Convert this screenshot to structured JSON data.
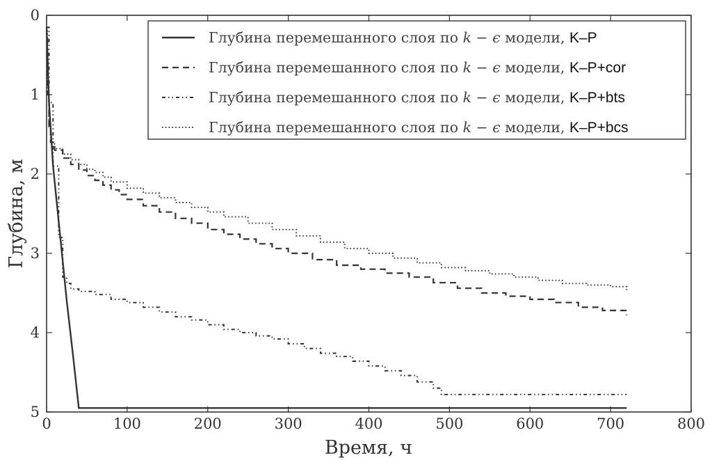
{
  "chart_data": {
    "type": "line",
    "title": "",
    "xlabel": "Время, ч",
    "ylabel": "Глубина, м",
    "xlim": [
      0,
      800
    ],
    "ylim": [
      0,
      5
    ],
    "y_inverted": true,
    "grid": false,
    "legend_position": "top-right",
    "x_ticks": [
      "0",
      "100",
      "200",
      "300",
      "400",
      "500",
      "600",
      "700",
      "800"
    ],
    "y_ticks": [
      "0",
      "1",
      "2",
      "3",
      "4",
      "5"
    ],
    "series": [
      {
        "name": "K–P",
        "legend_prefix": "Глубина перемешанного слоя по k − ϵ модели,",
        "style": "solid",
        "color": "#333333",
        "x": [
          0,
          3,
          8,
          15,
          25,
          33,
          40,
          720
        ],
        "y": [
          0.15,
          1.1,
          1.9,
          2.6,
          3.6,
          4.3,
          4.95,
          4.95
        ]
      },
      {
        "name": "K–P+cor",
        "legend_prefix": "Глубина перемешанного слоя по k − ϵ модели,",
        "style": "dashed",
        "color": "#333333",
        "x": [
          0,
          1,
          3,
          5,
          10,
          20,
          30,
          40,
          50,
          60,
          70,
          80,
          90,
          100,
          120,
          140,
          160,
          180,
          200,
          220,
          240,
          260,
          280,
          300,
          330,
          360,
          390,
          420,
          450,
          480,
          510,
          540,
          570,
          600,
          630,
          660,
          690,
          720
        ],
        "y": [
          0.3,
          1.0,
          1.4,
          1.6,
          1.7,
          1.8,
          1.88,
          1.95,
          2.02,
          2.08,
          2.14,
          2.2,
          2.26,
          2.32,
          2.4,
          2.48,
          2.56,
          2.62,
          2.7,
          2.76,
          2.82,
          2.88,
          2.94,
          3.0,
          3.08,
          3.15,
          3.2,
          3.25,
          3.3,
          3.37,
          3.44,
          3.5,
          3.54,
          3.58,
          3.62,
          3.68,
          3.72,
          3.78
        ]
      },
      {
        "name": "K–P+bts",
        "legend_prefix": "Глубина перемешанного слоя по k − ϵ модели,",
        "style": "dashdotdot",
        "color": "#333333",
        "x": [
          0,
          3,
          8,
          15,
          20,
          25,
          30,
          40,
          60,
          80,
          100,
          120,
          140,
          160,
          180,
          200,
          220,
          240,
          260,
          280,
          300,
          320,
          340,
          360,
          380,
          400,
          420,
          440,
          460,
          480,
          490,
          500,
          600,
          720
        ],
        "y": [
          0.15,
          1.1,
          1.9,
          2.8,
          3.3,
          3.38,
          3.45,
          3.48,
          3.52,
          3.58,
          3.62,
          3.68,
          3.74,
          3.8,
          3.84,
          3.9,
          3.96,
          4.0,
          4.04,
          4.08,
          4.14,
          4.2,
          4.26,
          4.3,
          4.36,
          4.42,
          4.48,
          4.54,
          4.62,
          4.7,
          4.78,
          4.78,
          4.78,
          4.78
        ]
      },
      {
        "name": "K–P+bcs",
        "legend_prefix": "Глубина перемешанного слоя по k − ϵ модели,",
        "style": "dotted",
        "color": "#333333",
        "x": [
          0,
          1,
          3,
          5,
          10,
          20,
          30,
          40,
          50,
          60,
          70,
          80,
          100,
          120,
          140,
          160,
          180,
          200,
          220,
          250,
          280,
          310,
          340,
          370,
          400,
          430,
          460,
          490,
          520,
          550,
          580,
          610,
          640,
          670,
          700,
          720
        ],
        "y": [
          0.2,
          1.0,
          1.4,
          1.6,
          1.68,
          1.75,
          1.82,
          1.88,
          1.94,
          1.98,
          2.04,
          2.1,
          2.18,
          2.24,
          2.3,
          2.36,
          2.42,
          2.48,
          2.54,
          2.62,
          2.7,
          2.78,
          2.86,
          2.94,
          3.0,
          3.06,
          3.12,
          3.18,
          3.22,
          3.26,
          3.3,
          3.34,
          3.38,
          3.4,
          3.42,
          3.48
        ]
      }
    ]
  }
}
